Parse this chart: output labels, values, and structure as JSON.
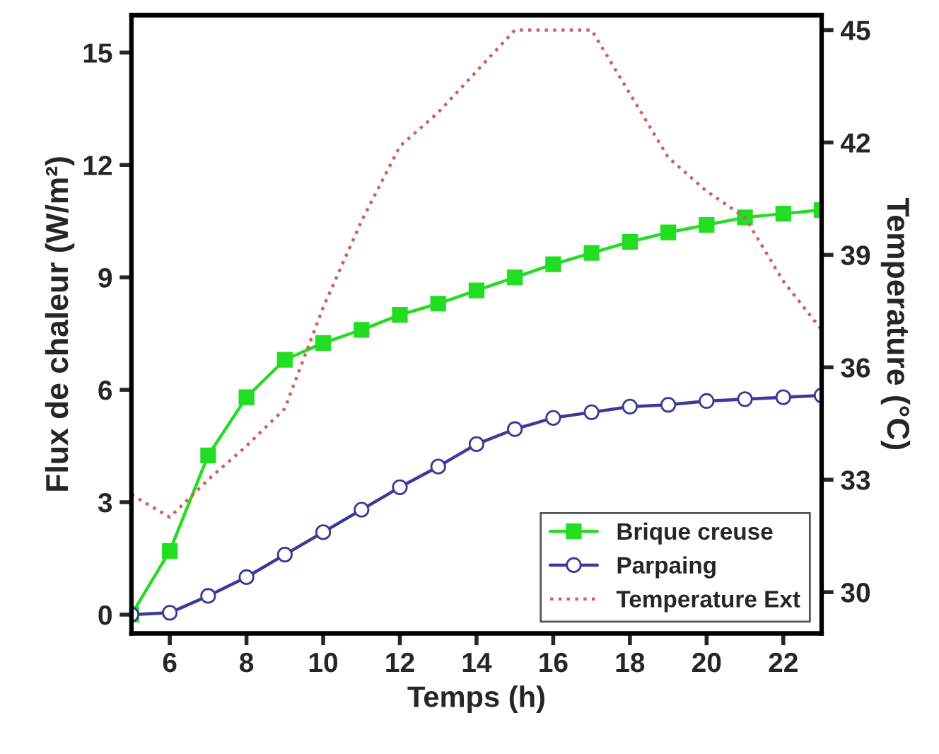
{
  "chart_data": {
    "type": "line",
    "xlabel": "Temps (h)",
    "ylabel": "Flux de chaleur (W/m²)",
    "y2label": "Temperature (°C)",
    "x": [
      5,
      6,
      7,
      8,
      9,
      10,
      11,
      12,
      13,
      14,
      15,
      16,
      17,
      18,
      19,
      20,
      21,
      22,
      23
    ],
    "series": [
      {
        "name": "Brique creuse",
        "color": "#22dd22",
        "marker": "square",
        "line_style": "solid",
        "values": [
          0,
          1.7,
          4.25,
          5.8,
          6.8,
          7.25,
          7.6,
          8.0,
          8.3,
          8.65,
          9.0,
          9.35,
          9.65,
          9.95,
          10.2,
          10.4,
          10.6,
          10.7,
          10.8
        ]
      },
      {
        "name": "Parpaing",
        "color": "#3a3a9a",
        "marker": "circle",
        "line_style": "solid",
        "values": [
          0,
          0.05,
          0.5,
          1.0,
          1.6,
          2.2,
          2.8,
          3.4,
          3.95,
          4.55,
          4.95,
          5.25,
          5.4,
          5.55,
          5.6,
          5.7,
          5.75,
          5.8,
          5.85
        ]
      },
      {
        "name": "Temperature Ext",
        "color": "#d06060",
        "marker": "none",
        "line_style": "dotted",
        "axis": "y2",
        "values": [
          32.6,
          32.0,
          33.0,
          33.9,
          34.9,
          37.6,
          39.9,
          41.9,
          42.8,
          43.9,
          45,
          45,
          45,
          43.3,
          41.6,
          40.7,
          40.0,
          38.3,
          37.0
        ]
      }
    ],
    "xlim": [
      5,
      23
    ],
    "xticks": [
      6,
      8,
      10,
      12,
      14,
      16,
      18,
      20,
      22
    ],
    "ylim": [
      -0.5,
      16
    ],
    "yticks": [
      0,
      3,
      6,
      9,
      12,
      15
    ],
    "y2lim": [
      28.9,
      45.4
    ],
    "y2ticks": [
      30,
      33,
      36,
      39,
      42,
      45
    ],
    "grid": false,
    "legend": "bottom right"
  }
}
